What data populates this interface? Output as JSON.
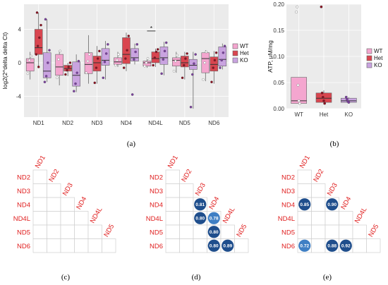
{
  "panel_labels": [
    "(a)",
    "(b)",
    "(c)",
    "(d)",
    "(e)"
  ],
  "colors": {
    "WT": "#f4a6cf",
    "Het": "#d9454f",
    "KO": "#c9a3e0",
    "panel_bg": "#ebebeb",
    "grid": "#ffffff",
    "matrix_label": "#e02020",
    "circle_dark": "#1f4e8c",
    "circle_light": "#3f7fc4"
  },
  "chart_data": [
    {
      "panel": "a",
      "type": "box",
      "ylabel": "log2(2^delta delta Ct)",
      "xlabel": "",
      "ylim": [
        -6.5,
        7
      ],
      "yticks": [
        -4,
        0,
        4
      ],
      "categories": [
        "ND1",
        "ND2",
        "ND3",
        "ND4",
        "ND4L",
        "ND5",
        "ND6"
      ],
      "legend": [
        "WT",
        "Het",
        "KO"
      ],
      "legend_position": "right",
      "annotation": {
        "text": "*",
        "category": "ND4L",
        "between": [
          "WT",
          "Het"
        ],
        "y": 3.8
      },
      "series": [
        {
          "name": "WT",
          "boxes": [
            {
              "q1": -1.0,
              "median": 0.0,
              "q3": 0.5,
              "wlo": -2.0,
              "whi": 1.3
            },
            {
              "q1": -1.5,
              "median": -0.5,
              "q3": 1.0,
              "wlo": -2.7,
              "whi": 1.5
            },
            {
              "q1": -1.3,
              "median": -0.2,
              "q3": 1.2,
              "wlo": -2.5,
              "whi": 3.3
            },
            {
              "q1": -0.2,
              "median": 0.1,
              "q3": 0.6,
              "wlo": -0.5,
              "whi": 1.3
            },
            {
              "q1": -0.4,
              "median": 0.0,
              "q3": 0.2,
              "wlo": -0.6,
              "whi": 0.6
            },
            {
              "q1": -0.4,
              "median": 0.3,
              "q3": 0.6,
              "wlo": -1.2,
              "whi": 1.3
            },
            {
              "q1": -1.2,
              "median": 0.5,
              "q3": 1.2,
              "wlo": -2.2,
              "whi": 1.5
            }
          ]
        },
        {
          "name": "Het",
          "boxes": [
            {
              "q1": 1.0,
              "median": 1.8,
              "q3": 4.0,
              "wlo": -0.5,
              "whi": 6.0
            },
            {
              "q1": -1.0,
              "median": -0.7,
              "q3": -0.3,
              "wlo": -1.6,
              "whi": 0.0
            },
            {
              "q1": -1.0,
              "median": 0.0,
              "q3": 0.8,
              "wlo": -2.5,
              "whi": 2.0
            },
            {
              "q1": -0.1,
              "median": 1.0,
              "q3": 3.0,
              "wlo": -1.0,
              "whi": 3.6
            },
            {
              "q1": 0.0,
              "median": 0.5,
              "q3": 1.3,
              "wlo": -0.5,
              "whi": 1.7
            },
            {
              "q1": -0.5,
              "median": 0.0,
              "q3": 0.8,
              "wlo": -2.0,
              "whi": 1.3
            },
            {
              "q1": -1.0,
              "median": -0.2,
              "q3": 0.7,
              "wlo": -2.5,
              "whi": 1.4
            }
          ]
        },
        {
          "name": "KO",
          "boxes": [
            {
              "q1": -1.8,
              "median": -1.0,
              "q3": 1.2,
              "wlo": -2.3,
              "whi": 5.2
            },
            {
              "q1": -2.8,
              "median": -1.5,
              "q3": 0.1,
              "wlo": -3.5,
              "whi": 1.0
            },
            {
              "q1": -0.3,
              "median": 0.3,
              "q3": 1.7,
              "wlo": -2.0,
              "whi": 2.6
            },
            {
              "q1": 0.2,
              "median": 0.6,
              "q3": 1.7,
              "wlo": -0.2,
              "whi": 2.3
            },
            {
              "q1": -0.2,
              "median": 0.6,
              "q3": 1.9,
              "wlo": -1.5,
              "whi": 2.5
            },
            {
              "q1": -0.8,
              "median": -0.3,
              "q3": 0.4,
              "wlo": -5.5,
              "whi": 1.3
            },
            {
              "q1": -0.4,
              "median": 0.4,
              "q3": 1.9,
              "wlo": -0.8,
              "whi": 2.3
            }
          ]
        }
      ],
      "points": [
        {
          "group": "WT",
          "category": "ND1",
          "y": [
            -1.3,
            0.3,
            0.8
          ]
        },
        {
          "group": "Het",
          "category": "ND1",
          "y": [
            1.0,
            2.0,
            3.0,
            4.5,
            6.0,
            -0.5
          ]
        },
        {
          "group": "KO",
          "category": "ND1",
          "y": [
            -2.3,
            -1.6,
            0.0,
            1.5,
            5.2
          ]
        },
        {
          "group": "WT",
          "category": "ND2",
          "y": [
            -1.8,
            0.4,
            1.4
          ]
        },
        {
          "group": "Het",
          "category": "ND2",
          "y": [
            -1.4,
            -0.9,
            -0.5,
            0.0
          ]
        },
        {
          "group": "KO",
          "category": "ND2",
          "y": [
            -3.4,
            -2.5,
            -1.2,
            0.2
          ]
        },
        {
          "group": "WT",
          "category": "ND3",
          "y": [
            -1.2,
            0.2,
            1.0
          ]
        },
        {
          "group": "Het",
          "category": "ND3",
          "y": [
            -2.4,
            -0.6,
            0.5,
            1.4
          ]
        },
        {
          "group": "KO",
          "category": "ND3",
          "y": [
            -1.8,
            0.1,
            1.1,
            2.2
          ]
        },
        {
          "group": "WT",
          "category": "ND4",
          "y": [
            -0.3,
            0.3,
            1.0
          ]
        },
        {
          "group": "Het",
          "category": "ND4",
          "y": [
            -0.6,
            0.5,
            1.5,
            3.2
          ]
        },
        {
          "group": "KO",
          "category": "ND4",
          "y": [
            -3.8,
            0.4,
            1.3,
            2.2
          ]
        },
        {
          "group": "WT",
          "category": "ND4L",
          "y": [
            -0.4,
            0.0,
            0.5
          ]
        },
        {
          "group": "Het",
          "category": "ND4L",
          "y": [
            -0.3,
            0.6,
            1.3,
            1.6
          ]
        },
        {
          "group": "KO",
          "category": "ND4L",
          "y": [
            -1.3,
            0.4,
            1.4,
            2.4
          ]
        },
        {
          "group": "WT",
          "category": "ND5",
          "y": [
            -1.0,
            0.2,
            0.9
          ]
        },
        {
          "group": "Het",
          "category": "ND5",
          "y": [
            -1.8,
            -0.3,
            0.5,
            1.1
          ]
        },
        {
          "group": "KO",
          "category": "ND5",
          "y": [
            -5.3,
            -1.4,
            -0.1,
            1.0
          ]
        },
        {
          "group": "WT",
          "category": "ND6",
          "y": [
            -2.0,
            0.0,
            1.3
          ]
        },
        {
          "group": "Het",
          "category": "ND6",
          "y": [
            -2.3,
            -0.6,
            0.3,
            1.2
          ]
        },
        {
          "group": "KO",
          "category": "ND6",
          "y": [
            -0.6,
            0.3,
            1.2,
            2.0
          ]
        }
      ]
    },
    {
      "panel": "b",
      "type": "box",
      "ylabel": "ATP, μM/mg",
      "xlabel": "",
      "ylim": [
        0,
        0.2
      ],
      "yticks": [
        0.0,
        0.05,
        0.1,
        0.15,
        0.2
      ],
      "ytick_labels": [
        "0.00",
        "0.05",
        "0.10",
        "0.15",
        "0.20"
      ],
      "categories": [
        "WT",
        "Het",
        "KO"
      ],
      "legend": [
        "WT",
        "Het",
        "KO"
      ],
      "legend_position": "right",
      "boxes": [
        {
          "q1": 0.01,
          "median": 0.015,
          "q3": 0.06,
          "wlo": 0.008,
          "whi": 0.06
        },
        {
          "q1": 0.012,
          "median": 0.02,
          "q3": 0.03,
          "wlo": 0.008,
          "whi": 0.035
        },
        {
          "q1": 0.012,
          "median": 0.015,
          "q3": 0.02,
          "wlo": 0.01,
          "whi": 0.022
        }
      ],
      "points": [
        {
          "category": "WT",
          "y": [
            0.185,
            0.195,
            0.045,
            0.015,
            0.01
          ]
        },
        {
          "category": "Het",
          "y": [
            0.195,
            0.03,
            0.022,
            0.015,
            0.01
          ]
        },
        {
          "category": "KO",
          "y": [
            0.022,
            0.018,
            0.014,
            0.012
          ]
        }
      ]
    },
    {
      "panel": "c",
      "type": "heatmap",
      "labels": [
        "ND1",
        "ND2",
        "ND3",
        "ND4",
        "ND4L",
        "ND5",
        "ND6"
      ],
      "cells": []
    },
    {
      "panel": "d",
      "type": "heatmap",
      "labels": [
        "ND1",
        "ND2",
        "ND3",
        "ND4",
        "ND4L",
        "ND5",
        "ND6"
      ],
      "cells": [
        {
          "row": "ND4",
          "col": "ND3",
          "value": "0.81"
        },
        {
          "row": "ND4L",
          "col": "ND3",
          "value": "0.80"
        },
        {
          "row": "ND4L",
          "col": "ND4",
          "value": "0.78"
        },
        {
          "row": "ND5",
          "col": "ND4",
          "value": "0.80"
        },
        {
          "row": "ND6",
          "col": "ND4",
          "value": "0.80"
        },
        {
          "row": "ND6",
          "col": "ND4L",
          "value": "0.89"
        }
      ]
    },
    {
      "panel": "e",
      "type": "heatmap",
      "labels": [
        "ND1",
        "ND2",
        "ND3",
        "ND4",
        "ND4L",
        "ND5",
        "ND6"
      ],
      "cells": [
        {
          "row": "ND4",
          "col": "ND1",
          "value": "0.85"
        },
        {
          "row": "ND4",
          "col": "ND3",
          "value": "0.90"
        },
        {
          "row": "ND6",
          "col": "ND1",
          "value": "0.72"
        },
        {
          "row": "ND6",
          "col": "ND3",
          "value": "0.88"
        },
        {
          "row": "ND6",
          "col": "ND4",
          "value": "0.92"
        }
      ]
    }
  ]
}
